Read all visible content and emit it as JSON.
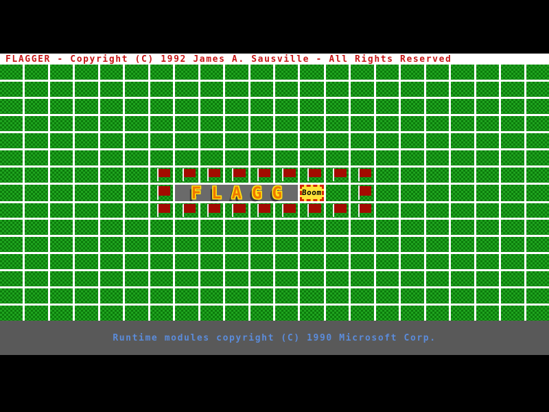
{
  "title_bar": {
    "text": "FLAGGER - Copyright (C) 1992 James A. Sausville - All Rights Reserved",
    "bg": "#ffffff",
    "color": "#c41414"
  },
  "status_bar": {
    "text": "Runtime modules copyright (C) 1990 Microsoft Corp.",
    "bg": "#595959",
    "color": "#5b8cdb"
  },
  "board": {
    "cols": 22,
    "rows": 15,
    "tile_color": "#1fa31f",
    "tile_dot_color": "#0c7c0c",
    "gap_color": "#ffffff",
    "flag_cloth_color": "#a30b00",
    "flag_pole_color": "#efefef",
    "flag_cells": [
      [
        6,
        6
      ],
      [
        6,
        7
      ],
      [
        6,
        8
      ],
      [
        6,
        9
      ],
      [
        6,
        10
      ],
      [
        6,
        11
      ],
      [
        6,
        12
      ],
      [
        6,
        13
      ],
      [
        6,
        14
      ],
      [
        7,
        6
      ],
      [
        7,
        14
      ],
      [
        8,
        6
      ],
      [
        8,
        7
      ],
      [
        8,
        8
      ],
      [
        8,
        9
      ],
      [
        8,
        10
      ],
      [
        8,
        11
      ],
      [
        8,
        12
      ],
      [
        8,
        13
      ],
      [
        8,
        14
      ]
    ]
  },
  "splash": {
    "letters": "FLAGG",
    "banner_bg": "#6a6a6a",
    "letter_color": "#ee7700",
    "letter_outline_color": "#ffe014",
    "row": 7,
    "col_start": 7,
    "col_span": 5,
    "boom": {
      "text": "Boom",
      "col": 12,
      "bg": "#ffe33a",
      "border_color": "#d42600",
      "text_color": "#000000"
    }
  }
}
